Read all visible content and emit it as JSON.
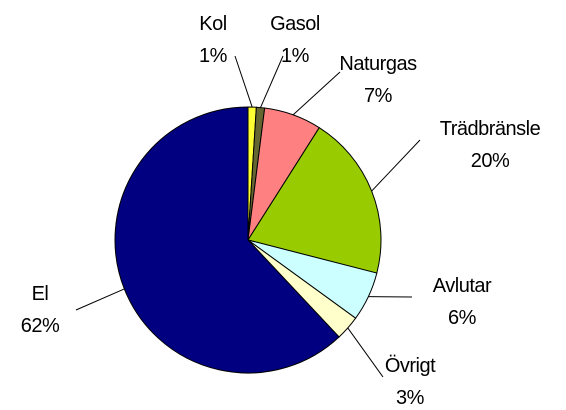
{
  "chart_data": {
    "type": "pie",
    "categories": [
      "Kol",
      "Gasol",
      "Naturgas",
      "Trädbränsle",
      "Avlutar",
      "Övrigt",
      "El"
    ],
    "values": [
      1,
      1,
      7,
      20,
      6,
      3,
      62
    ],
    "value_labels": [
      "1%",
      "1%",
      "7%",
      "20%",
      "6%",
      "3%",
      "62%"
    ],
    "colors": [
      "#ffff33",
      "#666633",
      "#ff8080",
      "#99cc00",
      "#ccffff",
      "#ffffcc",
      "#000080"
    ]
  }
}
